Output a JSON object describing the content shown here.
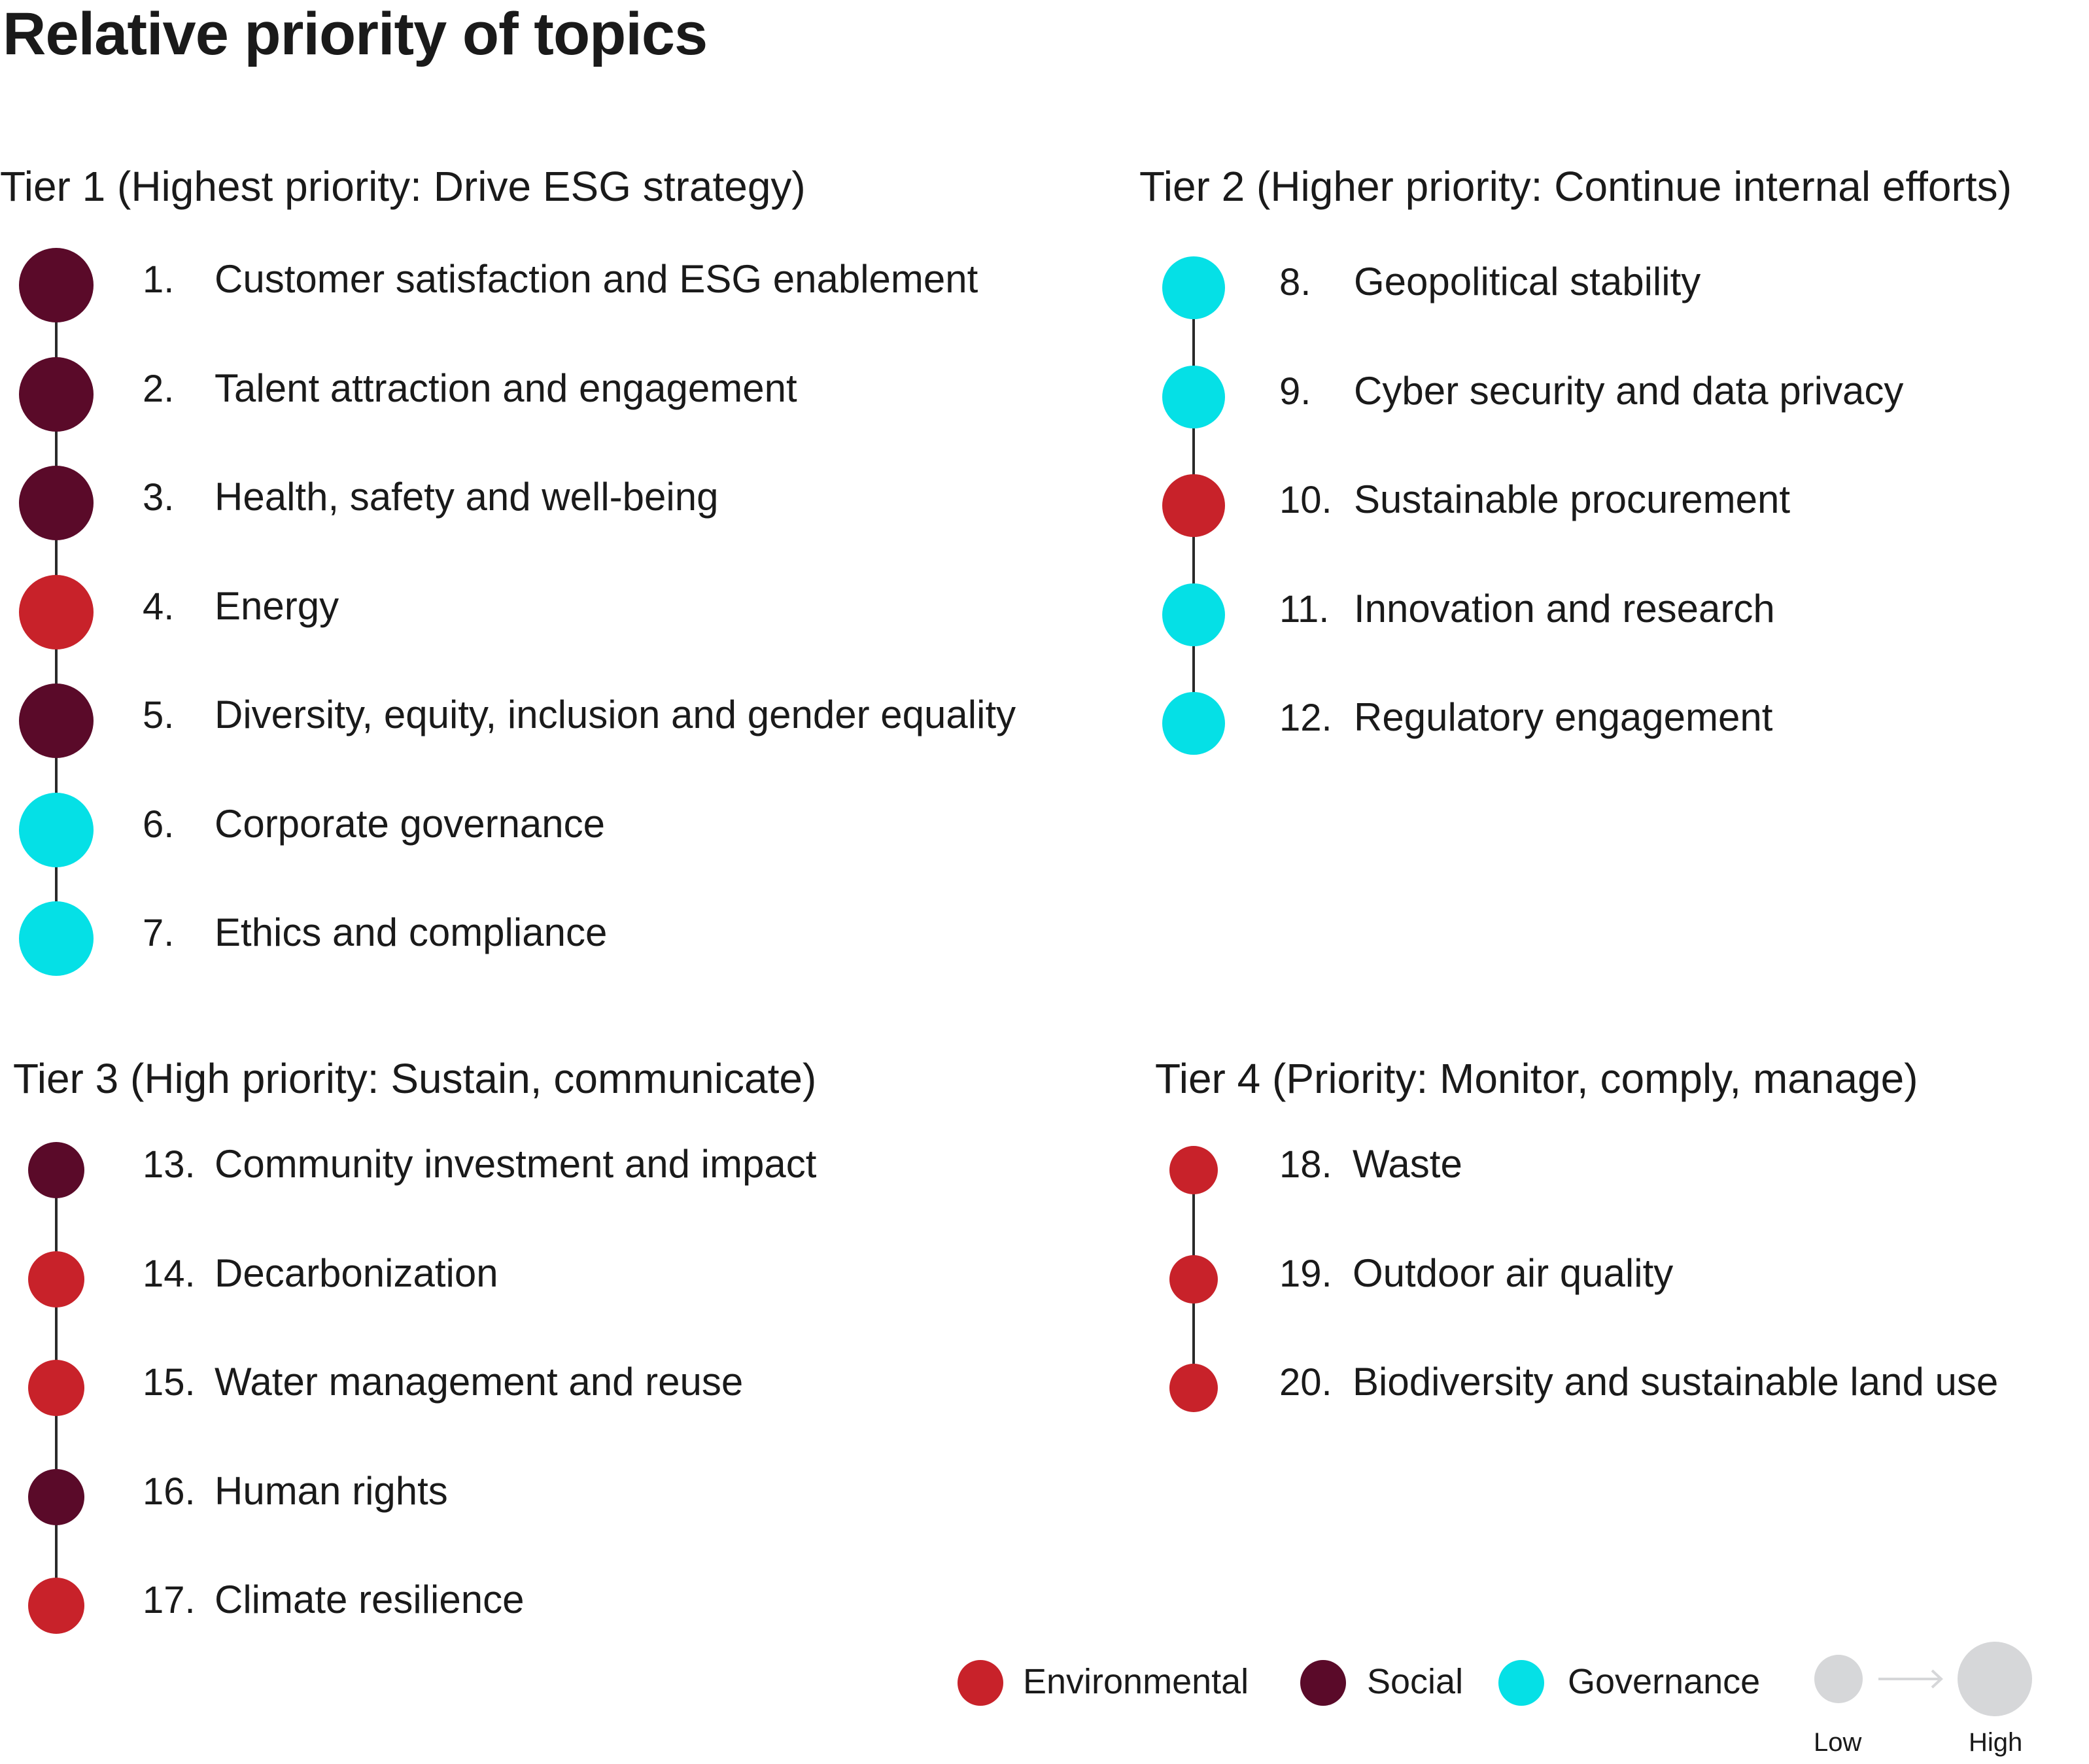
{
  "title": "Relative priority of topics",
  "colors": {
    "Environmental": "#c8222a",
    "Social": "#5a0a29",
    "Governance": "#05e0e6",
    "scale": "#d6d7d9"
  },
  "tiers": [
    {
      "heading": "Tier 1 (Highest priority: Drive ESG strategy)",
      "items": [
        {
          "num": "1.",
          "label": "Customer satisfaction and ESG enablement",
          "category": "Social"
        },
        {
          "num": "2.",
          "label": "Talent attraction and engagement",
          "category": "Social"
        },
        {
          "num": "3.",
          "label": "Health, safety and well-being",
          "category": "Social"
        },
        {
          "num": "4.",
          "label": "Energy",
          "category": "Environmental"
        },
        {
          "num": "5.",
          "label": "Diversity, equity, inclusion and gender equality",
          "category": "Social"
        },
        {
          "num": "6.",
          "label": "Corporate governance",
          "category": "Governance"
        },
        {
          "num": "7.",
          "label": "Ethics and compliance",
          "category": "Governance"
        }
      ]
    },
    {
      "heading": "Tier 2 (Higher priority: Continue internal efforts)",
      "items": [
        {
          "num": "8.",
          "label": "Geopolitical stability",
          "category": "Governance"
        },
        {
          "num": "9.",
          "label": "Cyber security and data privacy",
          "category": "Governance"
        },
        {
          "num": "10.",
          "label": "Sustainable procurement",
          "category": "Environmental"
        },
        {
          "num": "11.",
          "label": "Innovation and research",
          "category": "Governance"
        },
        {
          "num": "12.",
          "label": "Regulatory engagement",
          "category": "Governance"
        }
      ]
    },
    {
      "heading": "Tier 3 (High priority: Sustain, communicate)",
      "items": [
        {
          "num": "13.",
          "label": "Community investment and impact",
          "category": "Social"
        },
        {
          "num": "14.",
          "label": "Decarbonization",
          "category": "Environmental"
        },
        {
          "num": "15.",
          "label": "Water management and reuse",
          "category": "Environmental"
        },
        {
          "num": "16.",
          "label": "Human rights",
          "category": "Social"
        },
        {
          "num": "17.",
          "label": "Climate resilience",
          "category": "Environmental"
        }
      ]
    },
    {
      "heading": "Tier 4 (Priority: Monitor, comply, manage)",
      "items": [
        {
          "num": "18.",
          "label": "Waste",
          "category": "Environmental"
        },
        {
          "num": "19.",
          "label": "Outdoor air quality",
          "category": "Environmental"
        },
        {
          "num": "20.",
          "label": "Biodiversity and sustainable land use",
          "category": "Environmental"
        }
      ]
    }
  ],
  "legend": {
    "categories": [
      "Environmental",
      "Social",
      "Governance"
    ],
    "scale_low": "Low",
    "scale_high": "High"
  }
}
